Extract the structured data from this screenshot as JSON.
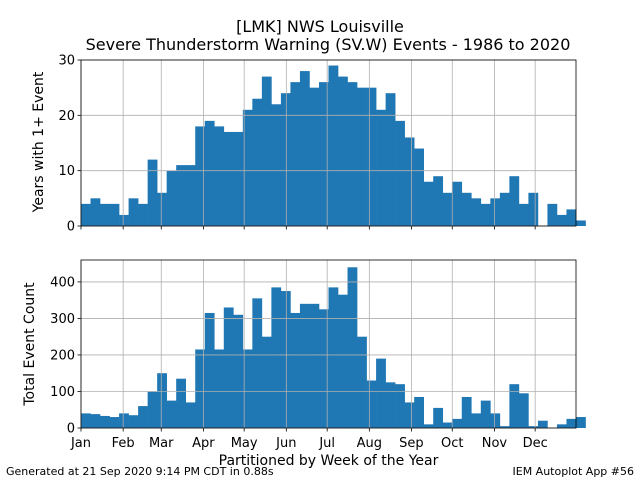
{
  "title_line1": "[LMK] NWS Louisville",
  "title_line2": "Severe Thunderstorm Warning (SV.W) Events - 1986 to 2020",
  "footer_left": "Generated at 21 Sep 2020 9:14 PM CDT in 0.88s",
  "footer_right": "IEM Autoplot App #56",
  "colors": {
    "bar": "#1f77b4",
    "grid": "#b0b0b0"
  },
  "chart_data": [
    {
      "type": "bar",
      "xlabel": "",
      "ylabel": "Years with 1+ Event",
      "ylim": [
        0,
        30
      ],
      "yticks": [
        0,
        10,
        20,
        30
      ],
      "xlim": [
        1,
        53
      ],
      "x_tick_labels_visible": false,
      "grid": true,
      "x": [
        1,
        2,
        3,
        4,
        5,
        6,
        7,
        8,
        9,
        10,
        11,
        12,
        13,
        14,
        15,
        16,
        17,
        18,
        19,
        20,
        21,
        22,
        23,
        24,
        25,
        26,
        27,
        28,
        29,
        30,
        31,
        32,
        33,
        34,
        35,
        36,
        37,
        38,
        39,
        40,
        41,
        42,
        43,
        44,
        45,
        46,
        47,
        48,
        49,
        50,
        51,
        52,
        53
      ],
      "values": [
        4,
        5,
        4,
        4,
        2,
        5,
        4,
        12,
        6,
        10,
        11,
        11,
        18,
        19,
        18,
        17,
        17,
        21,
        23,
        27,
        22,
        24,
        26,
        28,
        25,
        26,
        29,
        27,
        26,
        25,
        25,
        21,
        24,
        19,
        16,
        14,
        8,
        9,
        6,
        8,
        6,
        5,
        4,
        5,
        6,
        9,
        4,
        6,
        0,
        4,
        2,
        3,
        1
      ]
    },
    {
      "type": "bar",
      "xlabel": "Partitioned by Week of the Year",
      "ylabel": "Total Event Count",
      "ylim": [
        0,
        460
      ],
      "yticks": [
        0,
        100,
        200,
        300,
        400
      ],
      "xlim": [
        1,
        53
      ],
      "grid": true,
      "x_ticks": [
        {
          "label": "Jan",
          "x": 1
        },
        {
          "label": "Feb",
          "x": 5.43
        },
        {
          "label": "Mar",
          "x": 9.43
        },
        {
          "label": "Apr",
          "x": 13.86
        },
        {
          "label": "May",
          "x": 18.14
        },
        {
          "label": "Jun",
          "x": 22.57
        },
        {
          "label": "Jul",
          "x": 26.86
        },
        {
          "label": "Aug",
          "x": 31.29
        },
        {
          "label": "Sep",
          "x": 35.71
        },
        {
          "label": "Oct",
          "x": 40
        },
        {
          "label": "Nov",
          "x": 44.43
        },
        {
          "label": "Dec",
          "x": 48.71
        }
      ],
      "x": [
        1,
        2,
        3,
        4,
        5,
        6,
        7,
        8,
        9,
        10,
        11,
        12,
        13,
        14,
        15,
        16,
        17,
        18,
        19,
        20,
        21,
        22,
        23,
        24,
        25,
        26,
        27,
        28,
        29,
        30,
        31,
        32,
        33,
        34,
        35,
        36,
        37,
        38,
        39,
        40,
        41,
        42,
        43,
        44,
        45,
        46,
        47,
        48,
        49,
        50,
        51,
        52,
        53
      ],
      "values": [
        40,
        38,
        33,
        30,
        40,
        35,
        60,
        100,
        150,
        75,
        135,
        70,
        215,
        315,
        215,
        330,
        310,
        215,
        355,
        250,
        385,
        375,
        315,
        340,
        340,
        325,
        385,
        365,
        440,
        250,
        130,
        190,
        125,
        120,
        70,
        85,
        10,
        55,
        15,
        25,
        85,
        40,
        75,
        40,
        5,
        120,
        95,
        5,
        20,
        0,
        10,
        25,
        30
      ]
    }
  ]
}
